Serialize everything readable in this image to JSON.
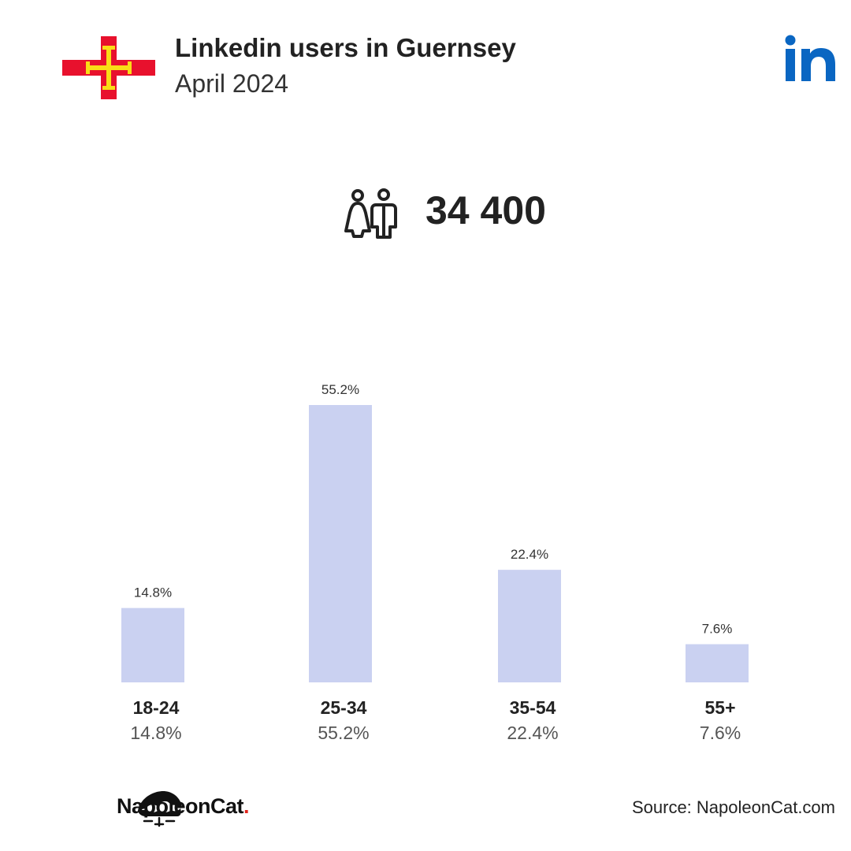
{
  "header": {
    "title": "Linkedin users in Guernsey",
    "subtitle": "April 2024"
  },
  "total": {
    "value": "34 400"
  },
  "chart_data": {
    "type": "bar",
    "title": "",
    "xlabel": "",
    "ylabel": "",
    "categories": [
      "18-24",
      "25-34",
      "35-54",
      "55+"
    ],
    "values": [
      14.8,
      55.2,
      22.4,
      7.6
    ],
    "value_labels": [
      "14.8%",
      "55.2%",
      "22.4%",
      "7.6%"
    ],
    "ylim": [
      0,
      55.2
    ],
    "grid": false,
    "bar_color": "#cad1f1"
  },
  "footer": {
    "brand": "NapoleonCat",
    "brand_dot": ".",
    "source": "Source: NapoleonCat.com"
  },
  "colors": {
    "flag_red": "#e8112d",
    "flag_gold": "#f9dd16",
    "linkedin_blue": "#0a66c2",
    "bar": "#cad1f1",
    "text": "#222222",
    "muted": "#555555"
  },
  "icons": {
    "flag": "guernsey-flag-icon",
    "logo": "linkedin-logo-icon",
    "people": "people-icon",
    "brand": "napoleoncat-logo-icon"
  }
}
